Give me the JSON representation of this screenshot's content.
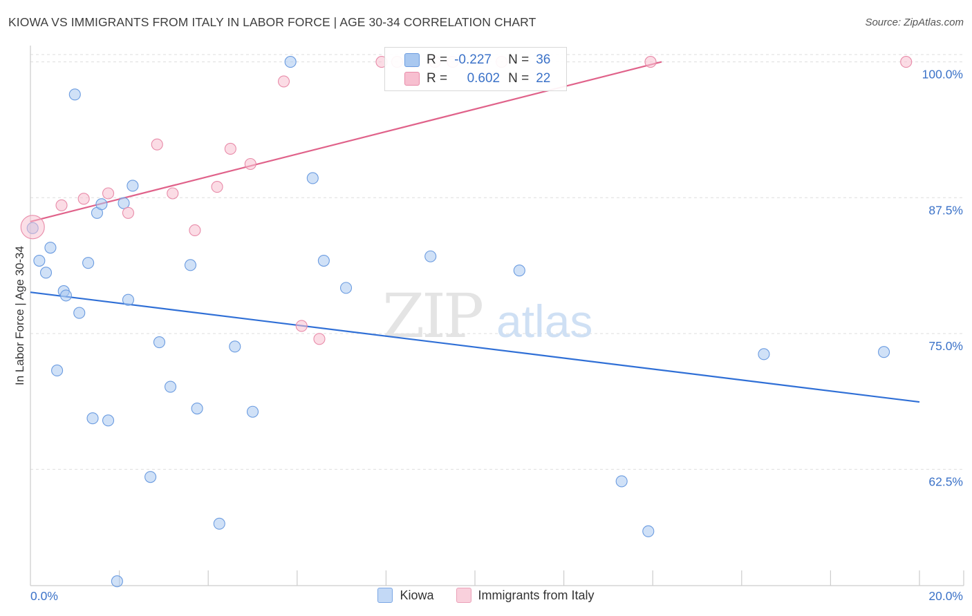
{
  "title": "KIOWA VS IMMIGRANTS FROM ITALY IN LABOR FORCE | AGE 30-34 CORRELATION CHART",
  "source": "Source: ZipAtlas.com",
  "watermark": {
    "zip": "ZIP",
    "atlas": "atlas"
  },
  "legend_stats": [
    {
      "r_label": "R =",
      "r_value": "-0.227",
      "n_label": "N =",
      "n_value": "36",
      "color": "#a9c8f0",
      "stroke": "#6a9be0"
    },
    {
      "r_label": "R =",
      "r_value": "0.602",
      "n_label": "N =",
      "n_value": "22",
      "color": "#f7bfd0",
      "stroke": "#e88aa8"
    }
  ],
  "bottom_legend": [
    {
      "label": "Kiowa",
      "color": "#c3d9f6",
      "stroke": "#7aa6e4"
    },
    {
      "label": "Immigrants from Italy",
      "color": "#f9d0dc",
      "stroke": "#eba0b8"
    }
  ],
  "chart_data": {
    "type": "scatter",
    "title": "KIOWA VS IMMIGRANTS FROM ITALY IN LABOR FORCE | AGE 30-34 CORRELATION CHART",
    "xlabel": "",
    "ylabel": "In Labor Force | Age 30-34",
    "xlim": [
      0,
      20
    ],
    "ylim": [
      51.8,
      101.5
    ],
    "x_tick_labels": [
      "0.0%",
      "20.0%"
    ],
    "y_ticks": [
      62.5,
      75.0,
      87.5,
      100.0
    ],
    "y_tick_labels": [
      "62.5%",
      "75.0%",
      "87.5%",
      "100.0%"
    ],
    "grid": "horizontal dashed",
    "series": [
      {
        "name": "Kiowa",
        "color": "#a9c8f0",
        "stroke": "#6a9be0",
        "trend": {
          "x": [
            0,
            20
          ],
          "y": [
            78.8,
            68.7
          ],
          "color": "#2f6fd6"
        },
        "points": [
          [
            0.05,
            84.7
          ],
          [
            0.2,
            81.7
          ],
          [
            0.35,
            80.6
          ],
          [
            0.45,
            82.9
          ],
          [
            0.6,
            71.6
          ],
          [
            0.75,
            78.9
          ],
          [
            0.8,
            78.5
          ],
          [
            1.0,
            97.0
          ],
          [
            1.1,
            76.9
          ],
          [
            1.3,
            81.5
          ],
          [
            1.4,
            67.2
          ],
          [
            1.5,
            86.1
          ],
          [
            1.6,
            86.9
          ],
          [
            1.75,
            67.0
          ],
          [
            1.95,
            52.2
          ],
          [
            2.1,
            87.0
          ],
          [
            2.2,
            78.1
          ],
          [
            2.3,
            88.6
          ],
          [
            2.7,
            61.8
          ],
          [
            2.9,
            74.2
          ],
          [
            3.15,
            70.1
          ],
          [
            3.6,
            81.3
          ],
          [
            3.75,
            68.1
          ],
          [
            4.25,
            57.5
          ],
          [
            4.6,
            73.8
          ],
          [
            5.0,
            67.8
          ],
          [
            5.85,
            100.0
          ],
          [
            6.35,
            89.3
          ],
          [
            6.6,
            81.7
          ],
          [
            7.1,
            79.2
          ],
          [
            9.0,
            82.1
          ],
          [
            11.0,
            80.8
          ],
          [
            13.3,
            61.4
          ],
          [
            13.9,
            56.8
          ],
          [
            16.5,
            73.1
          ],
          [
            19.2,
            73.3
          ]
        ]
      },
      {
        "name": "Immigrants from Italy",
        "color": "#f7bfd0",
        "stroke": "#e88aa8",
        "trend": {
          "x": [
            0,
            14.2
          ],
          "y": [
            85.3,
            100.0
          ],
          "color": "#e0628a"
        },
        "points": [
          [
            0.05,
            84.8,
            "big"
          ],
          [
            0.7,
            86.8
          ],
          [
            1.2,
            87.4
          ],
          [
            1.75,
            87.9
          ],
          [
            2.2,
            86.1
          ],
          [
            2.85,
            92.4
          ],
          [
            3.2,
            87.9
          ],
          [
            3.7,
            84.5
          ],
          [
            4.2,
            88.5
          ],
          [
            4.5,
            92.0
          ],
          [
            4.95,
            90.6
          ],
          [
            5.7,
            98.2
          ],
          [
            6.1,
            75.7
          ],
          [
            6.5,
            74.5
          ],
          [
            7.9,
            100.0
          ],
          [
            8.25,
            100.0
          ],
          [
            8.6,
            100.0
          ],
          [
            9.1,
            100.0
          ],
          [
            9.5,
            100.0
          ],
          [
            10.6,
            100.0
          ],
          [
            13.95,
            100.0
          ],
          [
            19.7,
            100.0
          ]
        ]
      }
    ]
  }
}
